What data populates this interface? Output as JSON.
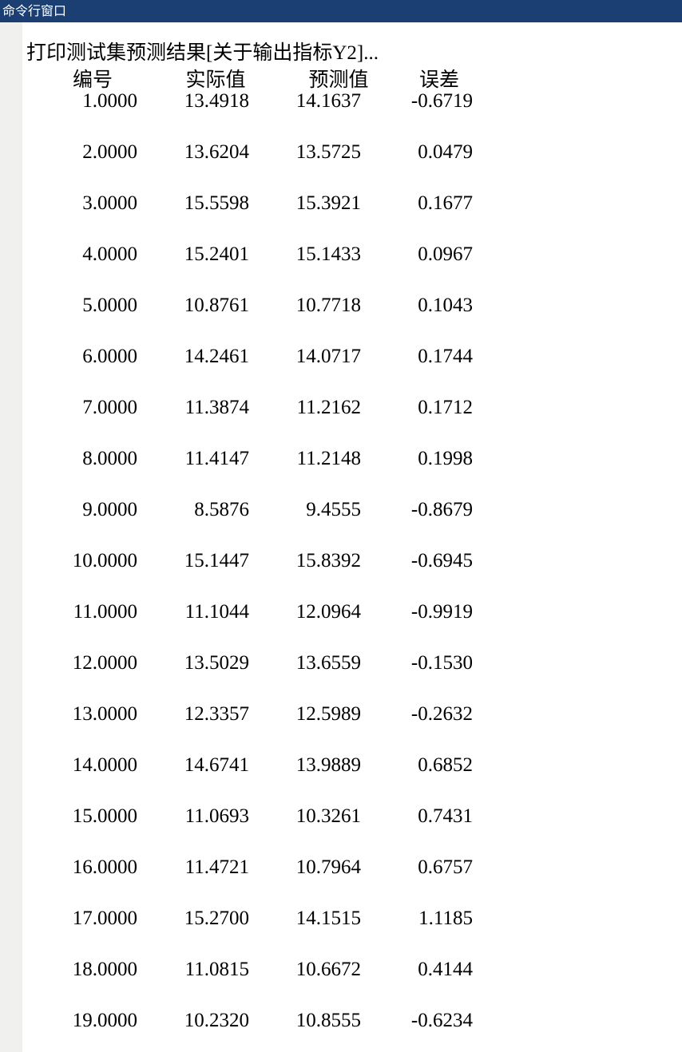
{
  "window": {
    "title": "命令行窗口"
  },
  "output": {
    "heading": "打印测试集预测结果[关于输出指标Y2]...",
    "columns": [
      "编号",
      "实际值",
      "预测值",
      "误差"
    ],
    "rows": [
      [
        "1.0000",
        "13.4918",
        "14.1637",
        "-0.6719"
      ],
      [
        "2.0000",
        "13.6204",
        "13.5725",
        "0.0479"
      ],
      [
        "3.0000",
        "15.5598",
        "15.3921",
        "0.1677"
      ],
      [
        "4.0000",
        "15.2401",
        "15.1433",
        "0.0967"
      ],
      [
        "5.0000",
        "10.8761",
        "10.7718",
        "0.1043"
      ],
      [
        "6.0000",
        "14.2461",
        "14.0717",
        "0.1744"
      ],
      [
        "7.0000",
        "11.3874",
        "11.2162",
        "0.1712"
      ],
      [
        "8.0000",
        "11.4147",
        "11.2148",
        "0.1998"
      ],
      [
        "9.0000",
        "8.5876",
        "9.4555",
        "-0.8679"
      ],
      [
        "10.0000",
        "15.1447",
        "15.8392",
        "-0.6945"
      ],
      [
        "11.0000",
        "11.1044",
        "12.0964",
        "-0.9919"
      ],
      [
        "12.0000",
        "13.5029",
        "13.6559",
        "-0.1530"
      ],
      [
        "13.0000",
        "12.3357",
        "12.5989",
        "-0.2632"
      ],
      [
        "14.0000",
        "14.6741",
        "13.9889",
        "0.6852"
      ],
      [
        "15.0000",
        "11.0693",
        "10.3261",
        "0.7431"
      ],
      [
        "16.0000",
        "11.4721",
        "10.7964",
        "0.6757"
      ],
      [
        "17.0000",
        "15.2700",
        "14.1515",
        "1.1185"
      ],
      [
        "18.0000",
        "11.0815",
        "10.6672",
        "0.4144"
      ],
      [
        "19.0000",
        "10.2320",
        "10.8555",
        "-0.6234"
      ]
    ]
  }
}
